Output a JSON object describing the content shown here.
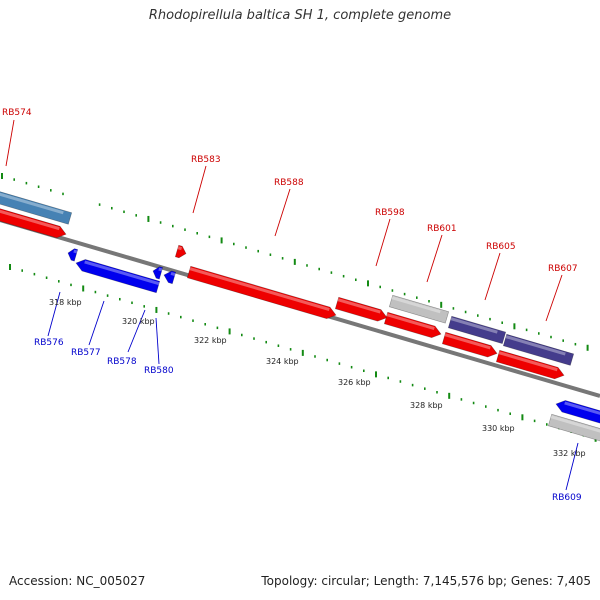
{
  "title": "Rhodopirellula baltica SH 1, complete genome",
  "footer": {
    "accession": "Accession: NC_005027",
    "summary": "Topology: circular; Length: 7,145,576 bp; Genes: 7,405"
  },
  "colors": {
    "forward_label": "#cc0000",
    "reverse_label": "#0000cc",
    "backbone": "#777777",
    "tick": "#138a13",
    "gene_red": "#ee0000",
    "gene_blue": "#0000ee",
    "gene_steel": "#4682b4",
    "gene_grey": "#c0c0c0",
    "gene_navy": "#443c8c"
  },
  "scale_labels": [
    "318 kbp",
    "320 kbp",
    "322 kbp",
    "324 kbp",
    "326 kbp",
    "328 kbp",
    "330 kbp",
    "332 kbp"
  ],
  "forward_gene_labels": [
    "RB574",
    "RB583",
    "RB588",
    "RB598",
    "RB601",
    "RB605",
    "RB607"
  ],
  "reverse_gene_labels": [
    "RB576",
    "RB577",
    "RB578",
    "RB580",
    "RB609"
  ]
}
